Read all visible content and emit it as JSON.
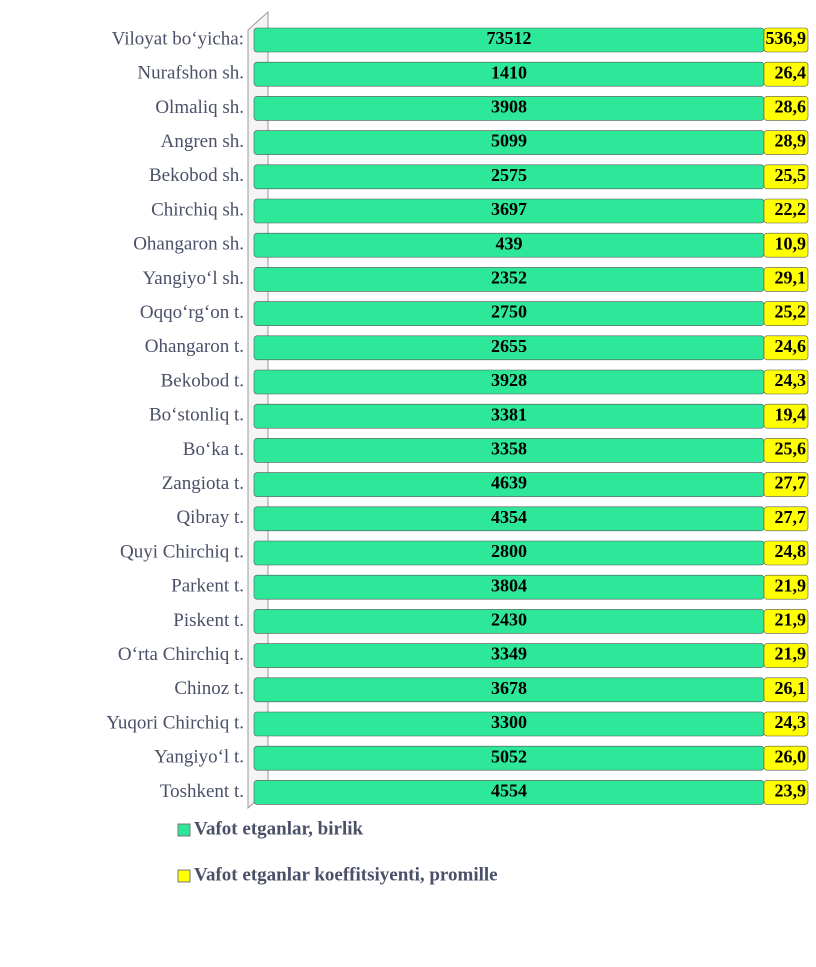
{
  "chart_data": {
    "type": "bar",
    "orientation": "horizontal",
    "stacked": "percent",
    "categories": [
      "Viloyat bo‘yicha:",
      "Nurafshon sh.",
      "Olmaliq sh.",
      "Angren sh.",
      "Bekobod sh.",
      "Chirchiq sh.",
      "Ohangaron sh.",
      "Yangiyo‘l sh.",
      "Oqqo‘rg‘on t.",
      "Ohangaron t.",
      "Bekobod t.",
      "Bo‘stonliq t.",
      "Bo‘ka t.",
      "Zangiota t.",
      "Qibray t.",
      "Quyi Chirchiq t.",
      "Parkent t.",
      "Piskent t.",
      "O‘rta Chirchiq t.",
      "Chinoz t.",
      "Yuqori Chirchiq t.",
      "Yangiyo‘l t.",
      "Toshkent t."
    ],
    "series": [
      {
        "name": "Vafot etganlar, birlik",
        "color": "#2ee89a",
        "values": [
          73512,
          1410,
          3908,
          5099,
          2575,
          3697,
          439,
          2352,
          2750,
          2655,
          3928,
          3381,
          3358,
          4639,
          4354,
          2800,
          3804,
          2430,
          3349,
          3678,
          3300,
          5052,
          4554
        ]
      },
      {
        "name": "Vafot etganlar koeffitsiyenti, promille",
        "color": "#ffff00",
        "values": [
          536.9,
          26.4,
          28.6,
          28.9,
          25.5,
          22.2,
          10.9,
          29.1,
          25.2,
          24.6,
          24.3,
          19.4,
          25.6,
          27.7,
          27.7,
          24.8,
          21.9,
          21.9,
          21.9,
          26.1,
          24.3,
          26.0,
          23.9
        ],
        "value_labels": [
          "536,9",
          "26,4",
          "28,6",
          "28,9",
          "25,5",
          "22,2",
          "10,9",
          "29,1",
          "25,2",
          "24,6",
          "24,3",
          "19,4",
          "25,6",
          "27,7",
          "27,7",
          "24,8",
          "21,9",
          "21,9",
          "21,9",
          "26,1",
          "24,3",
          "26,0",
          "23,9"
        ]
      }
    ],
    "legend": "bottom"
  }
}
